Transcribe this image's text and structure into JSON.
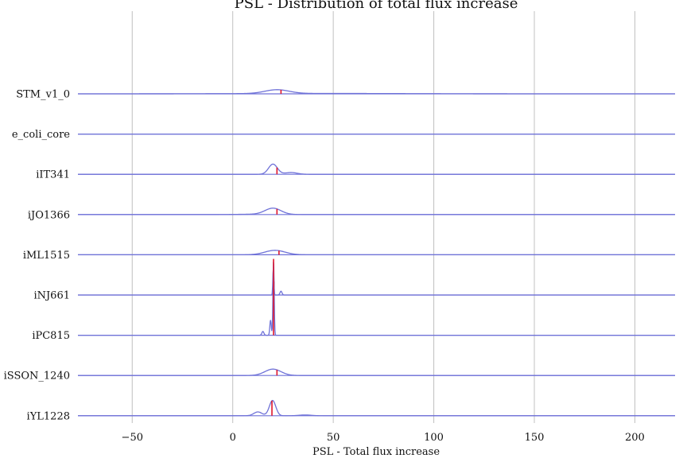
{
  "chart_data": {
    "type": "ridgeline",
    "title": "PSL - Distribution of total flux increase",
    "xlabel": "PSL - Total flux increase",
    "ylabel": "",
    "xlim": [
      -77,
      220
    ],
    "xticks": [
      -50,
      0,
      50,
      100,
      150,
      200
    ],
    "grid": "vertical",
    "colors": {
      "density": "#6f72d8",
      "baseline": "#6f72d8",
      "marker": "#e0162b",
      "grid": "#c0c0c0"
    },
    "series": [
      {
        "name": "STM_v1_0",
        "marker": 24,
        "peaks": [
          [
            22,
            6,
            3
          ],
          [
            45,
            40,
            0.3
          ]
        ]
      },
      {
        "name": "e_coli_core",
        "marker": null,
        "peaks": []
      },
      {
        "name": "iIT341",
        "marker": 22,
        "peaks": [
          [
            20,
            2.2,
            8
          ],
          [
            29,
            3,
            1.4
          ]
        ]
      },
      {
        "name": "iJO1366",
        "marker": 22,
        "peaks": [
          [
            20,
            4,
            5
          ],
          [
            8,
            6,
            0.2
          ]
        ]
      },
      {
        "name": "iML1515",
        "marker": 23,
        "peaks": [
          [
            21,
            5,
            3.5
          ]
        ]
      },
      {
        "name": "iNJ661",
        "marker": 20.5,
        "peaks": [
          [
            20.2,
            0.25,
            22
          ],
          [
            24,
            0.5,
            3
          ]
        ]
      },
      {
        "name": "iPC815",
        "marker": 20.3,
        "peaks": [
          [
            20.3,
            0.3,
            60
          ],
          [
            18.8,
            0.35,
            12
          ],
          [
            15,
            0.5,
            3
          ]
        ]
      },
      {
        "name": "iSSON_1240",
        "marker": 22,
        "peaks": [
          [
            20,
            4,
            5
          ]
        ]
      },
      {
        "name": "iYL1228",
        "marker": 19.5,
        "peaks": [
          [
            19.8,
            1.6,
            12
          ],
          [
            12.5,
            2,
            3
          ],
          [
            36,
            3,
            0.6
          ]
        ]
      }
    ]
  }
}
